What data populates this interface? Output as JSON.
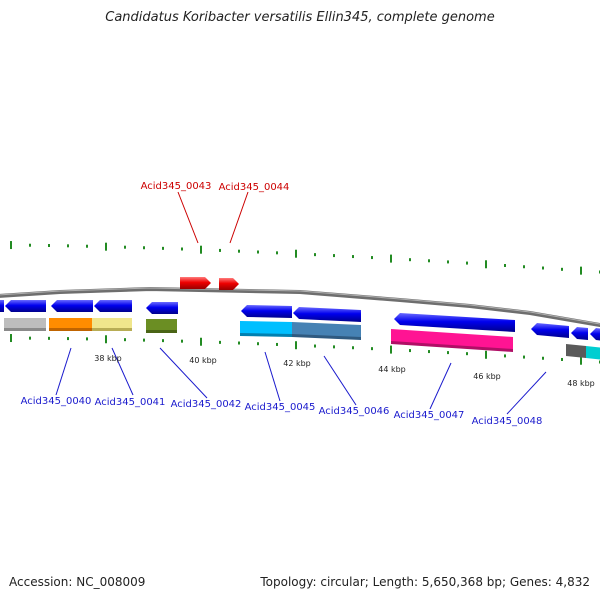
{
  "header": {
    "title": "Candidatus Koribacter versatilis Ellin345, complete genome"
  },
  "footer": {
    "accession": "Accession: NC_008009",
    "topology": "Topology: circular; Length: 5,650,368 bp; Genes: 4,832"
  },
  "colors": {
    "backbone": "#777777",
    "strand_gene": "#0000ee",
    "highlight_gene": "#ee0000",
    "minor_tick": "#228b22",
    "label_blue": "#1a1acd",
    "label_red": "#cc0000"
  },
  "ticks": {
    "labels": [
      "38 kbp",
      "40 kbp",
      "42 kbp",
      "44 kbp",
      "46 kbp",
      "48 kbp"
    ]
  },
  "genes": {
    "highlighted": [
      {
        "id": "Acid345_0043"
      },
      {
        "id": "Acid345_0044"
      }
    ],
    "lower": [
      {
        "id": "Acid345_0040"
      },
      {
        "id": "Acid345_0041"
      },
      {
        "id": "Acid345_0042"
      },
      {
        "id": "Acid345_0045"
      },
      {
        "id": "Acid345_0046"
      },
      {
        "id": "Acid345_0047"
      },
      {
        "id": "Acid345_0048"
      }
    ]
  }
}
